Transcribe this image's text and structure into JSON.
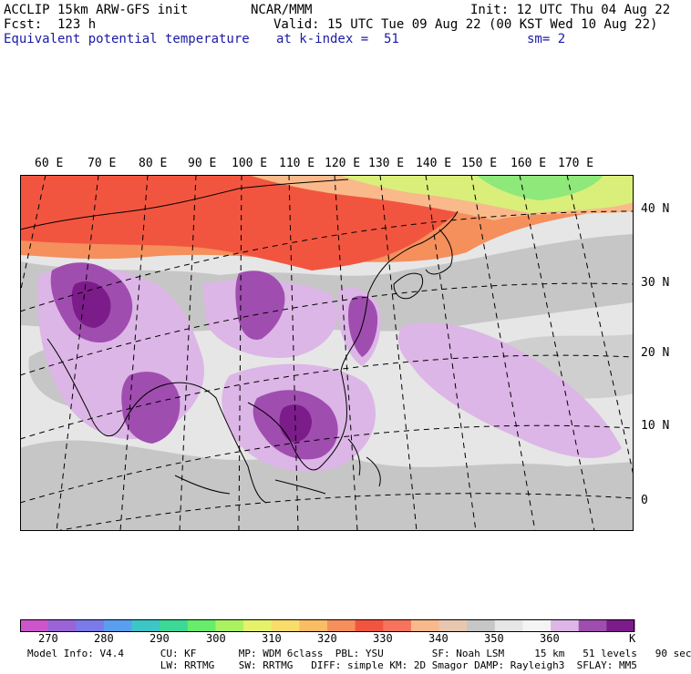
{
  "header": {
    "model_line": "ACCLIP 15km ARW-GFS init",
    "center_line": "NCAR/MMM",
    "init_line": "Init: 12 UTC Thu 04 Aug 22",
    "fcst_line": "Fcst:  123 h",
    "valid_line": "Valid: 15 UTC Tue 09 Aug 22 (00 KST Wed 10 Aug 22)",
    "field_name": "Equivalent potential temperature",
    "level_line": "at k-index =  51",
    "smooth_line": "sm= 2"
  },
  "map": {
    "longitude_labels": [
      "60 E",
      "70 E",
      "80 E",
      "90 E",
      "100 E",
      "110 E",
      "120 E",
      "130 E",
      "140 E",
      "150 E",
      "160 E",
      "170 E"
    ],
    "latitude_labels": [
      "40 N",
      "30 N",
      "20 N",
      "10 N",
      "0"
    ],
    "colors": {
      "warm_red": "#f2553f",
      "orange": "#f58f5c",
      "light_orange": "#f9b98a",
      "yellow_green": "#d9ef7a",
      "green": "#8ee87a",
      "gray": "#c6c6c6",
      "light_gray": "#e6e6e6",
      "lavender": "#dcb6e6",
      "purple": "#a04db0",
      "dark_purple": "#7c1c8a"
    }
  },
  "colorbar": {
    "unit": "K",
    "tick_labels": [
      "270",
      "280",
      "290",
      "300",
      "310",
      "320",
      "330",
      "340",
      "350",
      "360"
    ],
    "colors": [
      "#cc55cc",
      "#9a64d6",
      "#7a7ae8",
      "#5a9ef0",
      "#3cc6c6",
      "#3cd996",
      "#68ec6c",
      "#aaf260",
      "#e6f26a",
      "#f9dc6a",
      "#fbbd64",
      "#f58f5c",
      "#f2553f",
      "#f7735c",
      "#f9b98a",
      "#e8c7b0",
      "#c6c6c6",
      "#e6e6e6",
      "#f4f4f4",
      "#dcb6e6",
      "#a04db0",
      "#7c1c8a"
    ]
  },
  "model_info": {
    "line1": "Model Info: V4.4      CU: KF       MP: WDM 6class  PBL: YSU        SF: Noah LSM     15 km   51 levels   90 sec",
    "line2": "                      LW: RRTMG    SW: RRTMG   DIFF: simple KM: 2D Smagor DAMP: Rayleigh3  SFLAY: MM5"
  }
}
